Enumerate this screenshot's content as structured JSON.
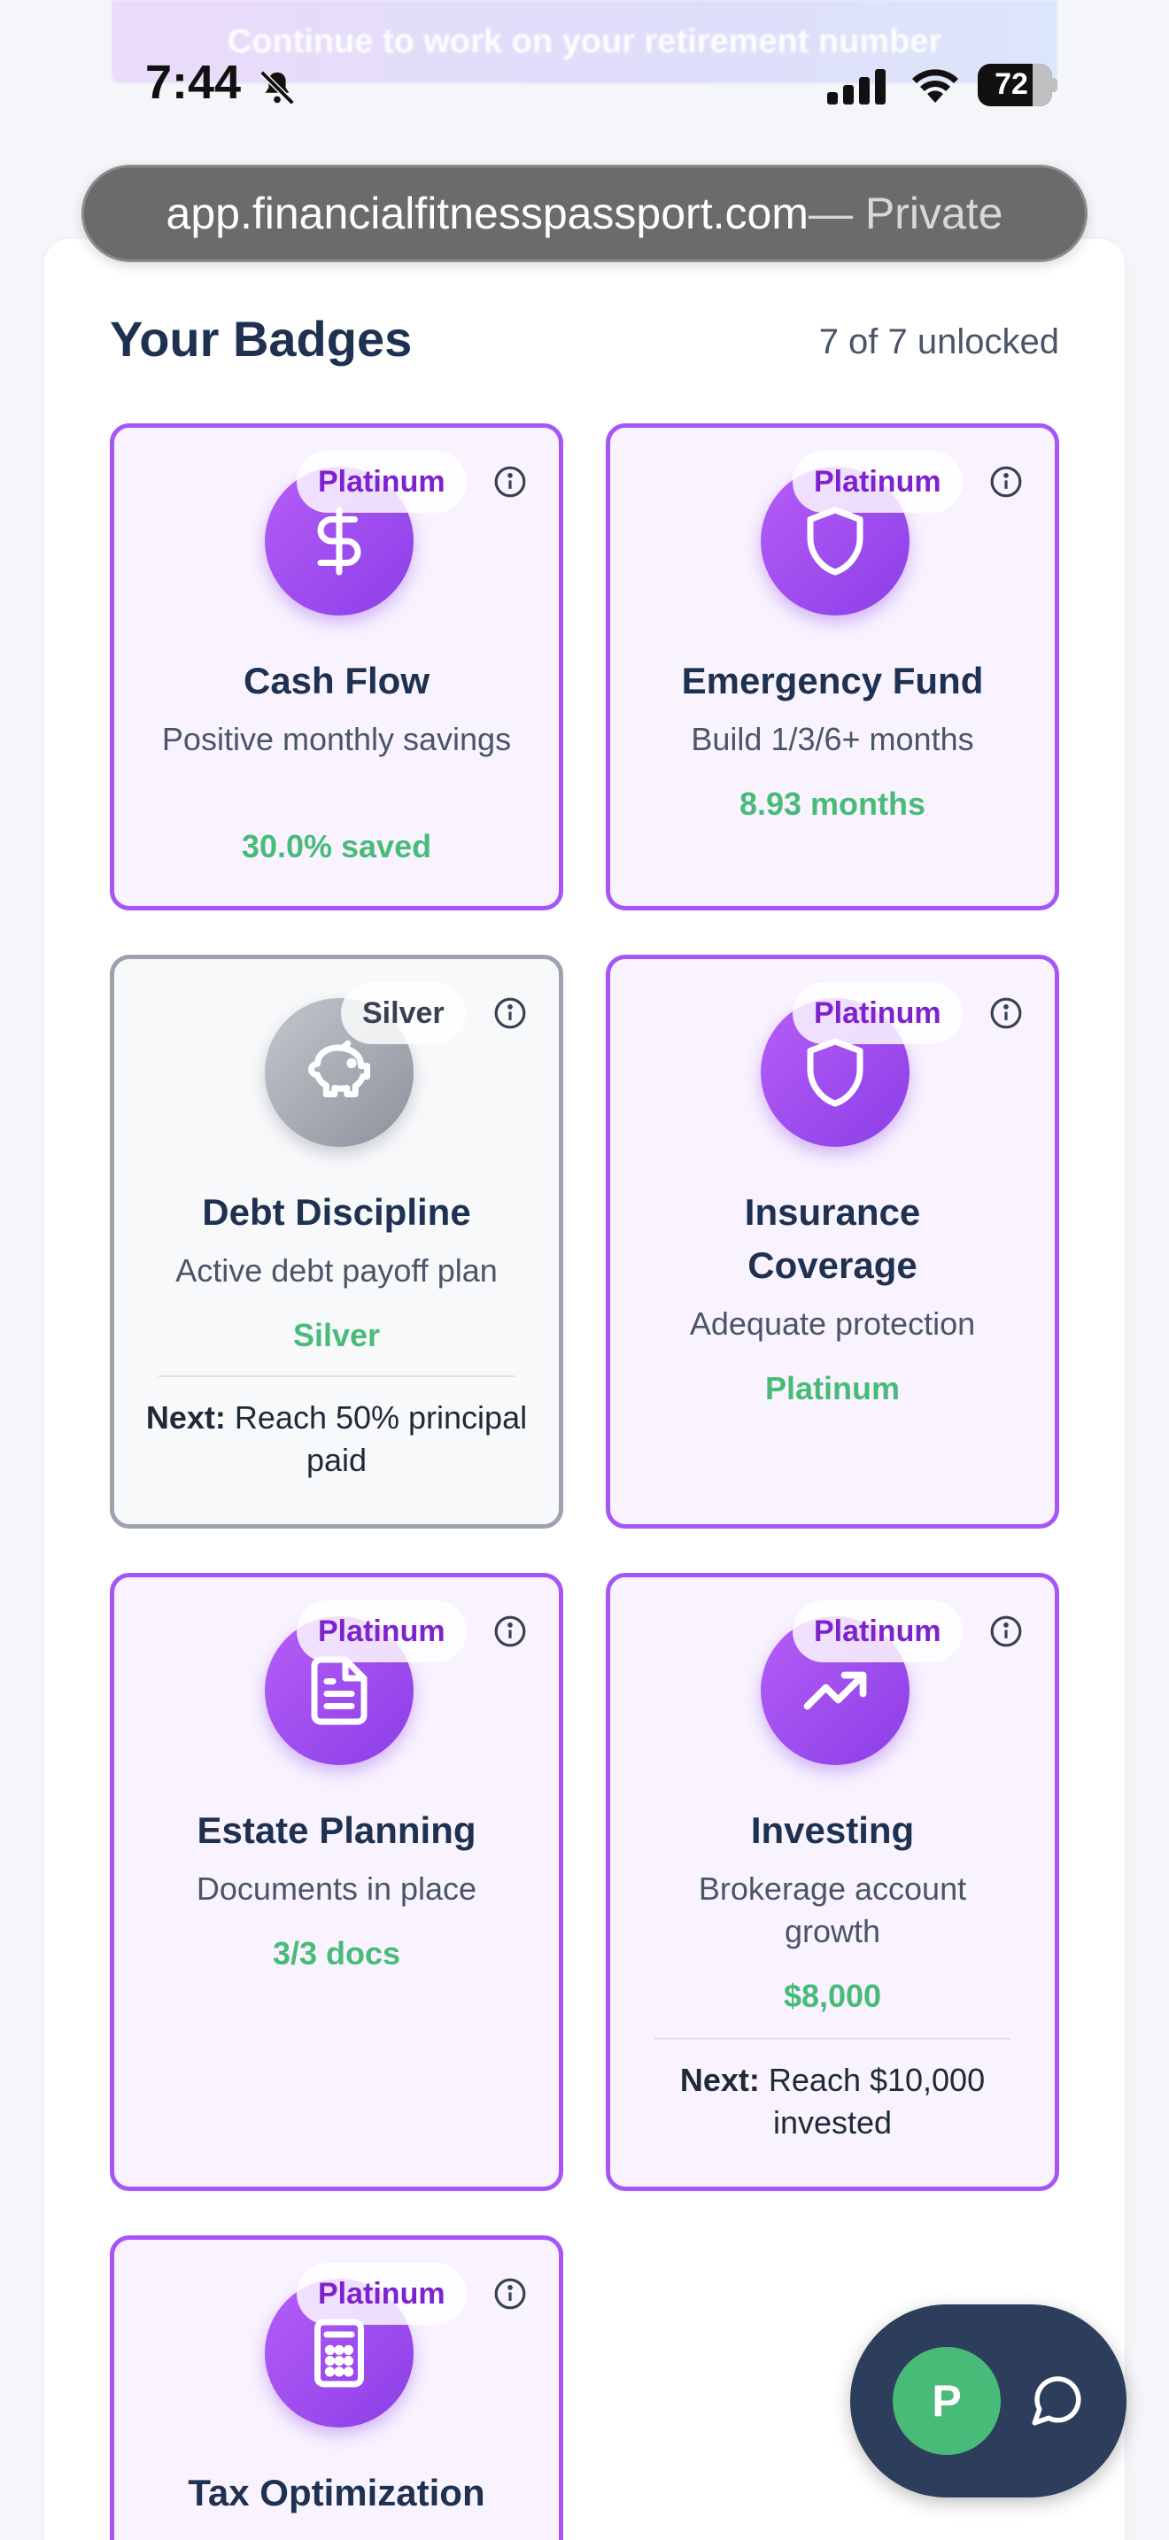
{
  "banner": {
    "text": "Continue to work on your retirement number"
  },
  "status_bar": {
    "time": "7:44",
    "battery": "72"
  },
  "browser": {
    "url": "app.financialfitnesspassport.com",
    "mode": " — Private"
  },
  "badges_section": {
    "title": "Your Badges",
    "count": "7 of 7 unlocked"
  },
  "badges": [
    {
      "tier": "Platinum",
      "icon": "dollar-icon",
      "name": "Cash Flow",
      "desc": "Positive monthly savings",
      "metric": "30.0% saved",
      "next_label": "",
      "next_text": ""
    },
    {
      "tier": "Platinum",
      "icon": "shield-icon",
      "name": "Emergency Fund",
      "desc": "Build 1/3/6+ months",
      "metric": "8.93 months",
      "next_label": "",
      "next_text": ""
    },
    {
      "tier": "Silver",
      "icon": "piggy-bank-icon",
      "name": "Debt Discipline",
      "desc": "Active debt payoff plan",
      "metric": "Silver",
      "next_label": "Next:",
      "next_text": " Reach 50% principal paid"
    },
    {
      "tier": "Platinum",
      "icon": "shield-icon",
      "name": "Insurance Coverage",
      "desc": "Adequate protection",
      "metric": "Platinum",
      "next_label": "",
      "next_text": ""
    },
    {
      "tier": "Platinum",
      "icon": "document-icon",
      "name": "Estate Planning",
      "desc": "Documents in place",
      "metric": "3/3 docs",
      "next_label": "",
      "next_text": ""
    },
    {
      "tier": "Platinum",
      "icon": "trending-up-icon",
      "name": "Investing",
      "desc": "Brokerage account growth",
      "metric": "$8,000",
      "next_label": "Next:",
      "next_text": " Reach $10,000 invested"
    },
    {
      "tier": "Platinum",
      "icon": "calculator-icon",
      "name": "Tax Optimization",
      "desc": "",
      "metric": "",
      "next_label": "",
      "next_text": ""
    }
  ],
  "chat": {
    "avatar_initial": "P"
  },
  "colors": {
    "accent": "#a855f7",
    "success": "#48bb78",
    "silver": "#9ca3af",
    "chat_bg": "#2c3e5c"
  }
}
